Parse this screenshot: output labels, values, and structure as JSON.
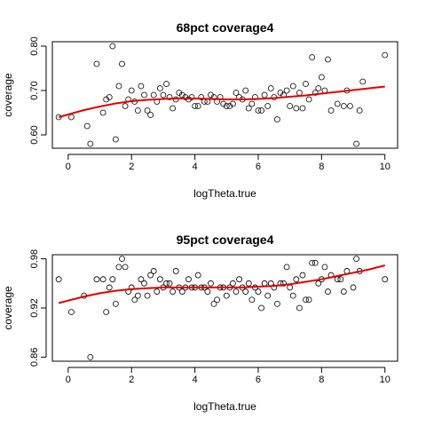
{
  "chart_data": [
    {
      "type": "scatter",
      "title": "68pct coverage4",
      "xlabel": "logTheta.true",
      "ylabel": "coverage",
      "xlim": [
        -0.5,
        10.4
      ],
      "ylim": [
        0.57,
        0.81
      ],
      "xticks": [
        0,
        2,
        4,
        6,
        8,
        10
      ],
      "yticks": [
        0.6,
        0.7,
        0.8
      ],
      "ytick_labels": [
        "0.60",
        "0.70",
        "0.80"
      ],
      "series": [
        {
          "x": [
            -0.3,
            0.1,
            0.6,
            0.7,
            0.9,
            1.1,
            1.2,
            1.3,
            1.4,
            1.5,
            1.6,
            1.7,
            1.8,
            1.9,
            2.0,
            2.1,
            2.2,
            2.3,
            2.4,
            2.5,
            2.6,
            2.7,
            2.8,
            2.9,
            3.0,
            3.1,
            3.2,
            3.3,
            3.4,
            3.5,
            3.6,
            3.7,
            3.8,
            3.9,
            4.0,
            4.1,
            4.2,
            4.3,
            4.4,
            4.5,
            4.6,
            4.7,
            4.8,
            4.9,
            5.0,
            5.1,
            5.2,
            5.3,
            5.4,
            5.5,
            5.6,
            5.7,
            5.8,
            5.9,
            6.0,
            6.1,
            6.2,
            6.3,
            6.4,
            6.5,
            6.6,
            6.7,
            6.8,
            6.9,
            7.0,
            7.1,
            7.2,
            7.3,
            7.4,
            7.5,
            7.6,
            7.7,
            7.8,
            7.9,
            8.0,
            8.1,
            8.2,
            8.3,
            8.5,
            8.7,
            8.8,
            8.9,
            9.1,
            9.2,
            9.3,
            10.0
          ],
          "y": [
            0.64,
            0.64,
            0.62,
            0.58,
            0.76,
            0.65,
            0.68,
            0.685,
            0.8,
            0.59,
            0.71,
            0.76,
            0.665,
            0.68,
            0.7,
            0.675,
            0.655,
            0.71,
            0.69,
            0.655,
            0.645,
            0.69,
            0.675,
            0.705,
            0.69,
            0.715,
            0.685,
            0.66,
            0.68,
            0.695,
            0.69,
            0.685,
            0.68,
            0.685,
            0.665,
            0.665,
            0.685,
            0.675,
            0.675,
            0.69,
            0.685,
            0.675,
            0.685,
            0.67,
            0.665,
            0.665,
            0.67,
            0.695,
            0.685,
            0.68,
            0.7,
            0.66,
            0.67,
            0.685,
            0.655,
            0.655,
            0.69,
            0.665,
            0.705,
            0.685,
            0.635,
            0.695,
            0.69,
            0.7,
            0.665,
            0.71,
            0.66,
            0.695,
            0.66,
            0.715,
            0.68,
            0.775,
            0.695,
            0.705,
            0.73,
            0.7,
            0.77,
            0.655,
            0.67,
            0.665,
            0.7,
            0.665,
            0.58,
            0.655,
            0.72,
            0.78
          ]
        }
      ],
      "fit": {
        "color": "#e00000",
        "x": [
          -0.3,
          0,
          0.5,
          1,
          1.5,
          2,
          2.5,
          3,
          3.5,
          4,
          4.5,
          5,
          5.5,
          6,
          6.5,
          7,
          7.5,
          8,
          8.5,
          9,
          9.5,
          10
        ],
        "y": [
          0.64,
          0.646,
          0.656,
          0.664,
          0.671,
          0.676,
          0.679,
          0.681,
          0.682,
          0.682,
          0.681,
          0.68,
          0.68,
          0.681,
          0.683,
          0.686,
          0.689,
          0.693,
          0.697,
          0.701,
          0.705,
          0.709
        ]
      }
    },
    {
      "type": "scatter",
      "title": "95pct coverage4",
      "xlabel": "logTheta.true",
      "ylabel": "coverage",
      "xlim": [
        -0.5,
        10.4
      ],
      "ylim": [
        0.855,
        0.985
      ],
      "xticks": [
        0,
        2,
        4,
        6,
        8,
        10
      ],
      "yticks": [
        0.86,
        0.92,
        0.98
      ],
      "ytick_labels": [
        "0.86",
        "0.92",
        "0.98"
      ],
      "series": [
        {
          "x": [
            -0.3,
            0.1,
            0.5,
            0.7,
            0.9,
            1.1,
            1.2,
            1.3,
            1.4,
            1.5,
            1.6,
            1.7,
            1.8,
            1.9,
            2.0,
            2.1,
            2.2,
            2.3,
            2.4,
            2.5,
            2.6,
            2.7,
            2.8,
            2.9,
            3.0,
            3.1,
            3.2,
            3.3,
            3.4,
            3.5,
            3.6,
            3.7,
            3.8,
            3.9,
            4.0,
            4.1,
            4.2,
            4.3,
            4.4,
            4.5,
            4.6,
            4.7,
            4.8,
            4.9,
            5.0,
            5.1,
            5.2,
            5.3,
            5.4,
            5.5,
            5.6,
            5.7,
            5.8,
            5.9,
            6.0,
            6.1,
            6.2,
            6.3,
            6.4,
            6.5,
            6.6,
            6.7,
            6.8,
            6.9,
            7.0,
            7.1,
            7.2,
            7.3,
            7.4,
            7.5,
            7.6,
            7.7,
            7.8,
            7.9,
            8.0,
            8.1,
            8.2,
            8.3,
            8.5,
            8.6,
            8.7,
            8.8,
            9.0,
            9.1,
            9.2,
            10.0
          ],
          "y": [
            0.955,
            0.915,
            0.935,
            0.86,
            0.955,
            0.955,
            0.915,
            0.945,
            0.955,
            0.925,
            0.97,
            0.98,
            0.97,
            0.94,
            0.945,
            0.93,
            0.935,
            0.955,
            0.95,
            0.935,
            0.96,
            0.965,
            0.94,
            0.955,
            0.945,
            0.95,
            0.95,
            0.94,
            0.965,
            0.945,
            0.94,
            0.945,
            0.955,
            0.945,
            0.945,
            0.96,
            0.945,
            0.945,
            0.94,
            0.95,
            0.925,
            0.93,
            0.945,
            0.945,
            0.935,
            0.945,
            0.95,
            0.94,
            0.955,
            0.945,
            0.94,
            0.95,
            0.93,
            0.945,
            0.94,
            0.92,
            0.95,
            0.935,
            0.95,
            0.945,
            0.925,
            0.95,
            0.95,
            0.97,
            0.945,
            0.935,
            0.955,
            0.92,
            0.96,
            0.93,
            0.93,
            0.975,
            0.975,
            0.95,
            0.955,
            0.97,
            0.94,
            0.96,
            0.955,
            0.955,
            0.94,
            0.965,
            0.945,
            0.98,
            0.965,
            0.955
          ]
        }
      ],
      "fit": {
        "color": "#e00000",
        "x": [
          -0.3,
          0,
          0.5,
          1,
          1.5,
          2,
          2.5,
          3,
          3.5,
          4,
          4.5,
          5,
          5.5,
          6,
          6.5,
          7,
          7.5,
          8,
          8.5,
          9,
          9.5,
          10
        ],
        "y": [
          0.926,
          0.929,
          0.934,
          0.938,
          0.941,
          0.943,
          0.944,
          0.945,
          0.945,
          0.945,
          0.945,
          0.945,
          0.945,
          0.946,
          0.947,
          0.949,
          0.952,
          0.955,
          0.959,
          0.963,
          0.967,
          0.972
        ]
      }
    }
  ]
}
